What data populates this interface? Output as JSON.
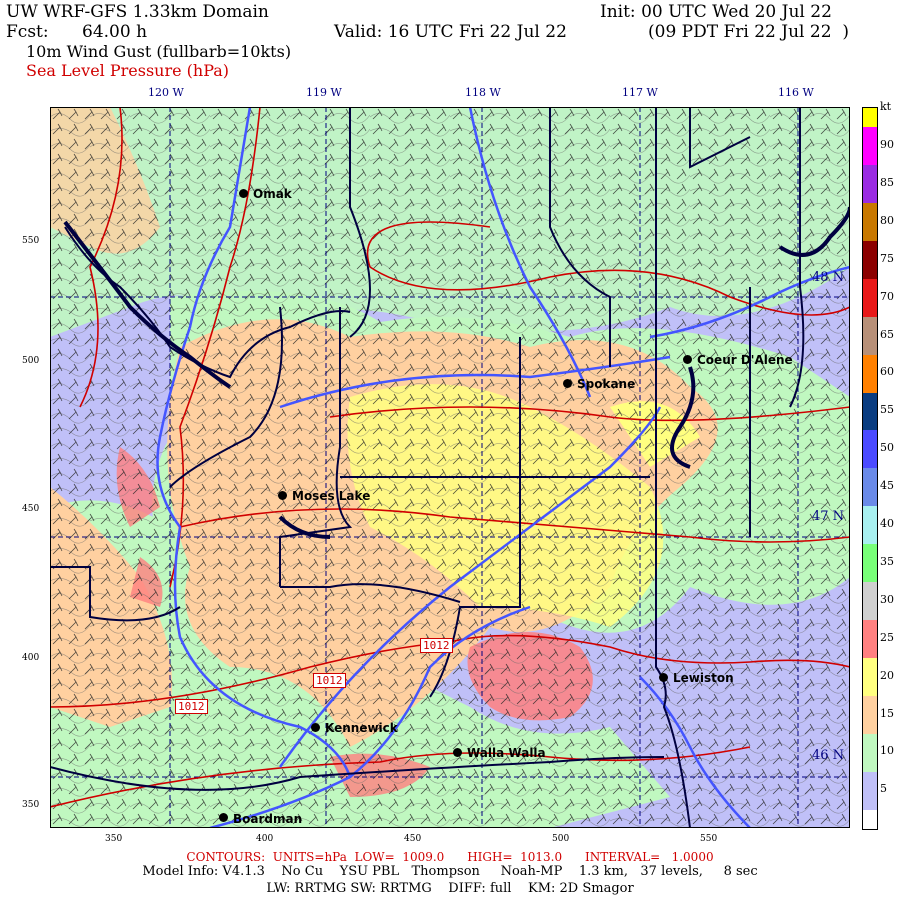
{
  "header": {
    "title": "UW WRF-GFS 1.33km Domain",
    "init": "Init: 00 UTC Wed 20 Jul 22",
    "fcst_label": "Fcst:",
    "fcst_value": "64.00 h",
    "valid": "Valid: 16 UTC Fri 22 Jul 22",
    "valid_local": "(09 PDT Fri 22 Jul 22  )",
    "field1": "10m Wind Gust (fullbarb=10kts)",
    "field2": "Sea Level Pressure (hPa)"
  },
  "longitude_labels": [
    "120 W",
    "119 W",
    "118 W",
    "117 W",
    "116 W"
  ],
  "latitude_labels": [
    "48 N",
    "47 N",
    "46 N"
  ],
  "y_axis_labels": [
    "550",
    "500",
    "450",
    "400",
    "350"
  ],
  "x_axis_labels": [
    "350",
    "400",
    "450",
    "500",
    "550"
  ],
  "cities": [
    "Omak",
    "Spokane",
    "Coeur D'Alene",
    "Moses Lake",
    "Lewiston",
    "Kennewick",
    "Walla Walla",
    "Boardman"
  ],
  "pressure_contour_labels": [
    "1012",
    "1012",
    "1012"
  ],
  "colorbar": {
    "unit": "kt",
    "labels": [
      "90",
      "85",
      "80",
      "75",
      "70",
      "65",
      "60",
      "55",
      "50",
      "45",
      "40",
      "35",
      "30",
      "25",
      "20",
      "15",
      "10",
      "5"
    ],
    "colors": [
      "#ffff00",
      "#ff00ff",
      "#ff00ff",
      "#9a2be2",
      "#9a2be2",
      "#c87800",
      "#c87800",
      "#8b0000",
      "#8b0000",
      "#e81818",
      "#e81818",
      "#b89078",
      "#b89078",
      "#ff8000",
      "#ff8000",
      "#0a3c80",
      "#0a3c80",
      "#4a4aff",
      "#4a4aff",
      "#6a8ae8",
      "#6a8ae8",
      "#a8f0f0",
      "#a8f0f0",
      "#78ff78",
      "#78ff78",
      "#d0d0d0",
      "#d0d0d0",
      "#ff8080",
      "#ff8080",
      "#ffff80",
      "#ffff80",
      "#ffd0a0",
      "#ffd0a0",
      "#c0f8c0",
      "#c0f8c0",
      "#c0c0f8",
      "#c0c0f8",
      "#ffffff"
    ]
  },
  "footer": {
    "contours": "CONTOURS:  UNITS=hPa  LOW=  1009.0      HIGH=  1013.0      INTERVAL=   1.0000",
    "model_info": "Model Info: V4.1.3    No Cu    YSU PBL   Thompson     Noah-MP    1.3 km,   37 levels,     8 sec",
    "physics": "LW: RRTMG SW: RRTMG    DIFF: full    KM: 2D Smagor"
  },
  "colors": {
    "pressure_contour": "#d00000",
    "state_border": "#000040",
    "rivers": "#4455ff"
  }
}
